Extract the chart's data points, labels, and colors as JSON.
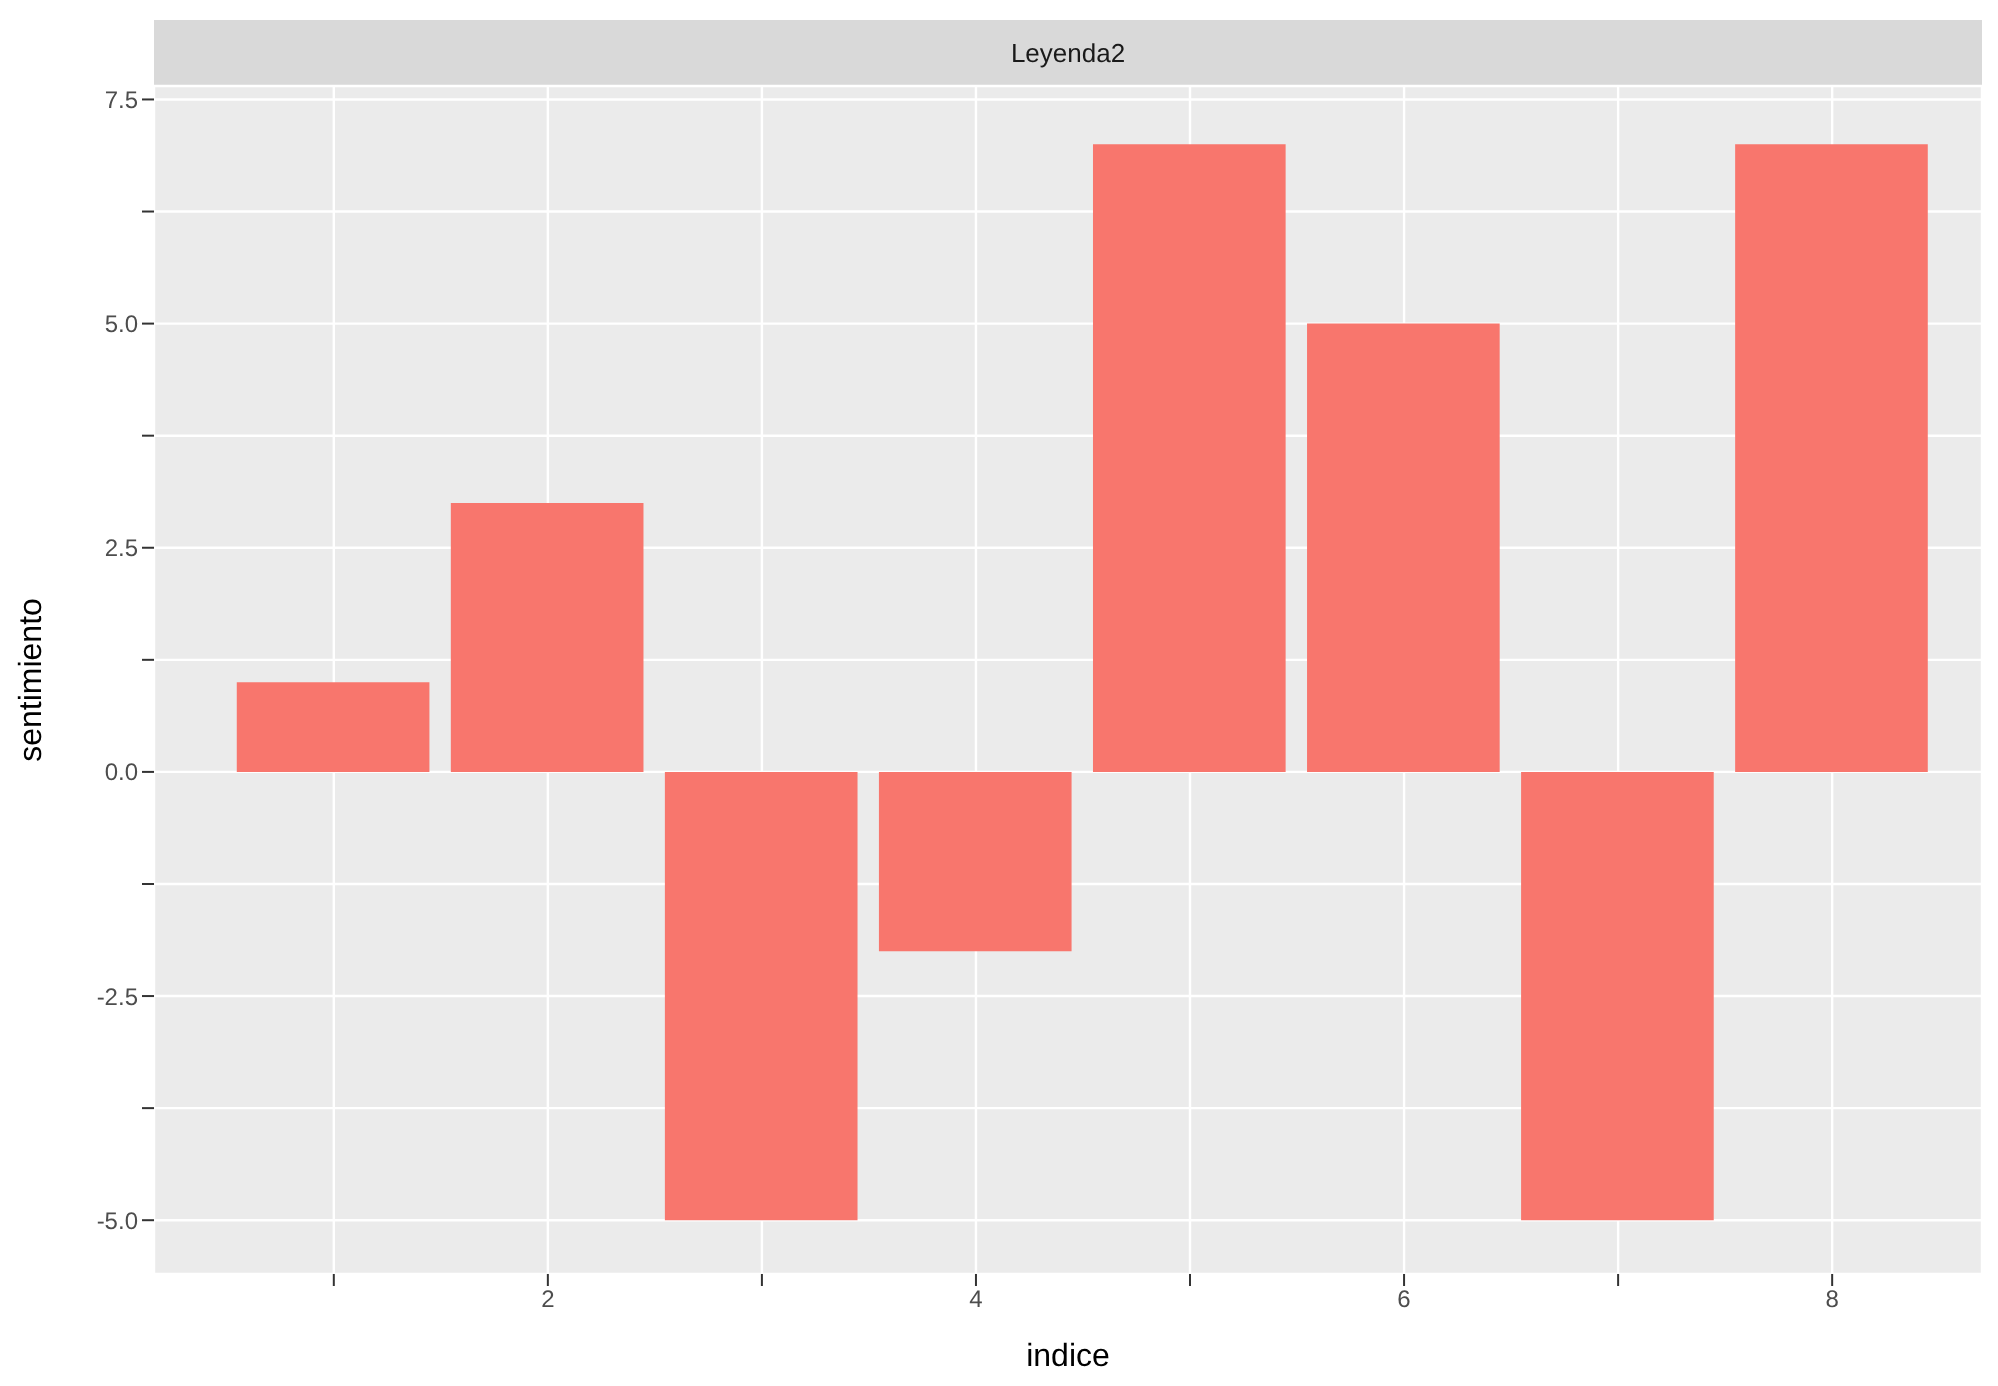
{
  "chart_data": {
    "type": "bar",
    "title": "Leyenda2",
    "xlabel": "indice",
    "ylabel": "sentimiento",
    "x": [
      1,
      2,
      3,
      4,
      5,
      6,
      7,
      8
    ],
    "values": [
      1,
      3,
      -5,
      -2,
      7,
      5,
      -5,
      7
    ],
    "color": "#f8766d",
    "xlim": [
      0.16,
      8.7
    ],
    "xticks": [
      {
        "value": 1,
        "label": null
      },
      2,
      {
        "value": 3,
        "label": null
      },
      4,
      {
        "value": 5,
        "label": null
      },
      6,
      {
        "value": 7,
        "label": null
      },
      8
    ],
    "ylim": [
      -5.6,
      7.65
    ],
    "yticks": [
      {
        "value": -5,
        "label": "-5.0"
      },
      {
        "value": -3.75,
        "label": null
      },
      {
        "value": -2.5,
        "label": "-2.5"
      },
      {
        "value": -1.25,
        "label": null
      },
      {
        "value": 0,
        "label": "0.0"
      },
      {
        "value": 1.25,
        "label": null
      },
      {
        "value": 2.5,
        "label": "2.5"
      },
      {
        "value": 3.75,
        "label": null
      },
      {
        "value": 5,
        "label": "5.0"
      },
      {
        "value": 6.25,
        "label": null
      },
      {
        "value": 7.5,
        "label": "7.5"
      }
    ],
    "grid": true
  }
}
